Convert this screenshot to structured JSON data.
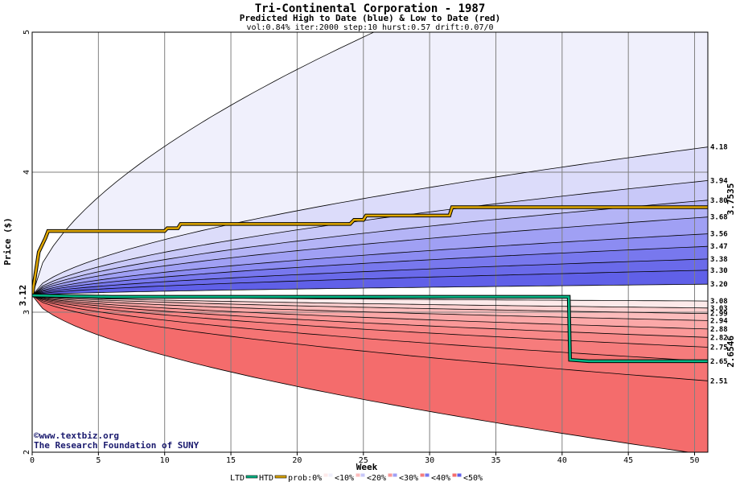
{
  "chart_data": {
    "type": "area",
    "title": "Tri-Continental Corporation - 1987",
    "subtitle": "Predicted High to Date (blue) &  Low to Date (red)",
    "params": "vol:0.84% iter:2000 step:10 hurst:0.57 drift:0.07/0",
    "xlabel": "Week",
    "ylabel": "Price ($)",
    "xlim": [
      0,
      51
    ],
    "ylim": [
      2,
      5
    ],
    "x_ticks": [
      0,
      5,
      10,
      15,
      20,
      25,
      30,
      35,
      40,
      45,
      50
    ],
    "y_ticks": [
      2,
      3,
      4,
      5
    ],
    "start_price": 3.12,
    "start_label": "3.12",
    "high_quantiles": [
      {
        "end": 5.95,
        "label": ""
      },
      {
        "end": 4.18,
        "label": "4.18"
      },
      {
        "end": 3.94,
        "label": "3.94"
      },
      {
        "end": 3.8,
        "label": "3.80"
      },
      {
        "end": 3.68,
        "label": "3.68"
      },
      {
        "end": 3.56,
        "label": "3.56"
      },
      {
        "end": 3.47,
        "label": "3.47"
      },
      {
        "end": 3.38,
        "label": "3.38"
      },
      {
        "end": 3.3,
        "label": "3.30"
      },
      {
        "end": 3.2,
        "label": "3.20"
      }
    ],
    "low_quantiles": [
      {
        "end": 3.08,
        "label": "3.08"
      },
      {
        "end": 3.03,
        "label": "3.03"
      },
      {
        "end": 2.99,
        "label": "2.99"
      },
      {
        "end": 2.94,
        "label": "2.94"
      },
      {
        "end": 2.88,
        "label": "2.88"
      },
      {
        "end": 2.82,
        "label": "2.82"
      },
      {
        "end": 2.75,
        "label": "2.75"
      },
      {
        "end": 2.65,
        "label": "2.65"
      },
      {
        "end": 2.51,
        "label": "2.51"
      },
      {
        "end": 1.98,
        "label": ""
      }
    ],
    "htd_series": {
      "name": "HTD",
      "color": "#e0a800",
      "end_label": "3.7535",
      "points": [
        [
          0,
          3.12
        ],
        [
          0.5,
          3.43
        ],
        [
          1,
          3.53
        ],
        [
          1.2,
          3.58
        ],
        [
          10,
          3.58
        ],
        [
          10.2,
          3.6
        ],
        [
          11,
          3.6
        ],
        [
          11.2,
          3.63
        ],
        [
          24,
          3.63
        ],
        [
          24.3,
          3.66
        ],
        [
          25,
          3.66
        ],
        [
          25.2,
          3.69
        ],
        [
          31.5,
          3.69
        ],
        [
          31.7,
          3.75
        ],
        [
          51,
          3.75
        ]
      ]
    },
    "ltd_series": {
      "name": "LTD",
      "color": "#00b887",
      "end_label": "2.6546",
      "points": [
        [
          0,
          3.12
        ],
        [
          6,
          3.11
        ],
        [
          40.5,
          3.11
        ],
        [
          40.6,
          2.66
        ],
        [
          42,
          2.65
        ],
        [
          51,
          2.65
        ]
      ]
    },
    "legend": {
      "ltd": "LTD",
      "htd": "HTD",
      "prob": "prob:0%",
      "bins": [
        "<10%",
        "<20%",
        "<30%",
        "<40%",
        "<50%"
      ],
      "position": "bottom"
    },
    "grid": true
  },
  "colors": {
    "blue_bands": [
      "#f0f0fc",
      "#dcdcfa",
      "#c8c8f8",
      "#b4b4f6",
      "#a0a0f4",
      "#8c8cf2",
      "#7878ee",
      "#6a6aea",
      "#6060e8"
    ],
    "red_bands": [
      "#fdeaea",
      "#fdd0d0",
      "#fcbcbc",
      "#fba8a8",
      "#fa9898",
      "#f88888",
      "#f67c7c",
      "#f57474",
      "#f46c6c"
    ],
    "grid": "#808080",
    "blue_text": "#1a1a6e",
    "gold": "#9a7600",
    "green": "#008a66"
  },
  "credit": {
    "copyright": "©www.textbiz.org",
    "foundation": "The Research Foundation of SUNY"
  }
}
